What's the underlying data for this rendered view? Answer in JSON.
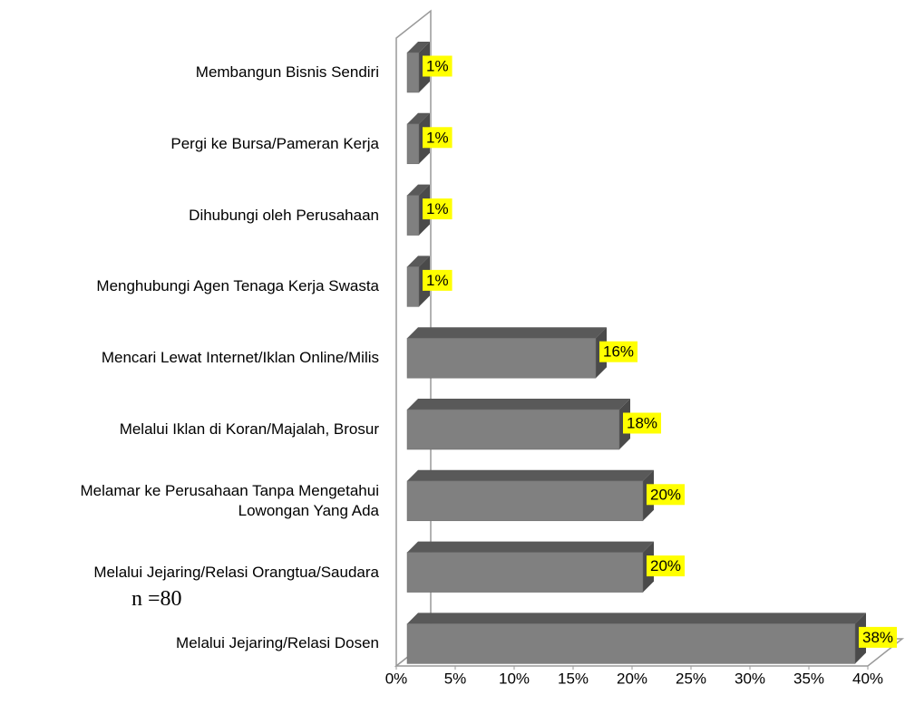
{
  "chart_data": {
    "type": "bar",
    "orientation": "horizontal",
    "categories": [
      "Membangun Bisnis Sendiri",
      "Pergi ke Bursa/Pameran Kerja",
      "Dihubungi oleh Perusahaan",
      "Menghubungi Agen Tenaga Kerja Swasta",
      "Mencari Lewat Internet/Iklan Online/Milis",
      "Melalui Iklan di Koran/Majalah, Brosur",
      "Melamar ke Perusahaan Tanpa Mengetahui Lowongan Yang Ada",
      "Melalui Jejaring/Relasi Orangtua/Saudara",
      "Melalui Jejaring/Relasi Dosen"
    ],
    "values": [
      1,
      1,
      1,
      1,
      16,
      18,
      20,
      20,
      38
    ],
    "value_labels": [
      "1%",
      "1%",
      "1%",
      "1%",
      "16%",
      "18%",
      "20%",
      "20%",
      "38%"
    ],
    "color": "#808080",
    "xlim": [
      0,
      40
    ],
    "xticks": [
      {
        "value": 0,
        "label": "0%"
      },
      {
        "value": 5,
        "label": "5%"
      },
      {
        "value": 10,
        "label": "10%"
      },
      {
        "value": 15,
        "label": "15%"
      },
      {
        "value": 20,
        "label": "20%"
      },
      {
        "value": 25,
        "label": "25%"
      },
      {
        "value": 30,
        "label": "30%"
      },
      {
        "value": 35,
        "label": "35%"
      },
      {
        "value": 40,
        "label": "40%"
      }
    ],
    "annotation": "n =80"
  }
}
